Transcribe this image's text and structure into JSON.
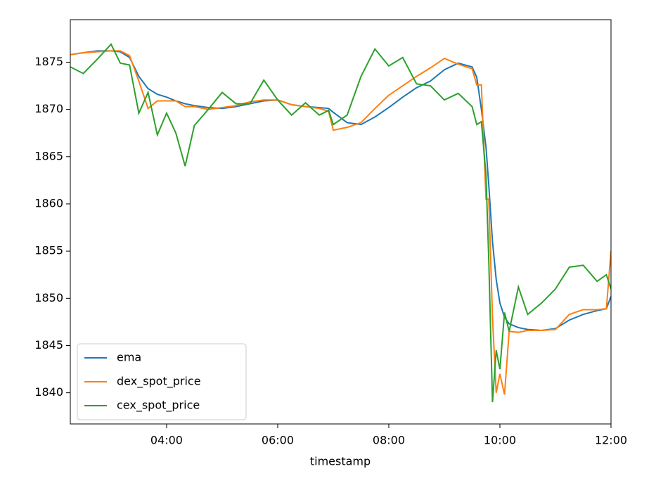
{
  "chart_data": {
    "type": "line",
    "x_label": "timestamp",
    "x": [
      "02:16",
      "02:30",
      "02:45",
      "03:00",
      "03:10",
      "03:20",
      "03:30",
      "03:40",
      "03:50",
      "04:00",
      "04:10",
      "04:20",
      "04:30",
      "04:45",
      "05:00",
      "05:15",
      "05:30",
      "05:45",
      "06:00",
      "06:15",
      "06:30",
      "06:45",
      "06:55",
      "07:00",
      "07:15",
      "07:30",
      "07:45",
      "08:00",
      "08:15",
      "08:30",
      "08:45",
      "09:00",
      "09:15",
      "09:30",
      "09:35",
      "09:40",
      "09:45",
      "09:48",
      "09:52",
      "09:56",
      "10:00",
      "10:05",
      "10:10",
      "10:20",
      "10:30",
      "10:45",
      "11:00",
      "11:15",
      "11:30",
      "11:45",
      "11:55",
      "12:00"
    ],
    "series": [
      {
        "name": "ema",
        "color": "#1f77b4",
        "values": [
          1875.8,
          1876,
          1876.2,
          1876.2,
          1876.1,
          1875.5,
          1873.5,
          1872.2,
          1871.6,
          1871.3,
          1870.9,
          1870.6,
          1870.4,
          1870.2,
          1870.1,
          1870.3,
          1870.6,
          1870.9,
          1871,
          1870.5,
          1870.3,
          1870.2,
          1870.1,
          1869.7,
          1868.6,
          1868.4,
          1869.2,
          1870.2,
          1871.3,
          1872.3,
          1873,
          1874.2,
          1874.9,
          1874.5,
          1873.4,
          1870,
          1866,
          1862,
          1856,
          1852,
          1849.5,
          1848,
          1847.3,
          1846.9,
          1846.7,
          1846.6,
          1846.8,
          1847.7,
          1848.3,
          1848.7,
          1848.9,
          1850.2
        ]
      },
      {
        "name": "dex_spot_price",
        "color": "#ff7f0e",
        "values": [
          1875.8,
          1876,
          1876.1,
          1876.2,
          1876.2,
          1875.7,
          1873,
          1870.1,
          1870.9,
          1870.9,
          1870.9,
          1870.3,
          1870.3,
          1870,
          1870.2,
          1870.4,
          1870.8,
          1871,
          1871,
          1870.5,
          1870.3,
          1870.1,
          1869.8,
          1867.8,
          1868.1,
          1868.6,
          1870.1,
          1871.5,
          1872.5,
          1873.5,
          1874.4,
          1875.4,
          1874.8,
          1874.3,
          1872.6,
          1872.6,
          1860.5,
          1860.5,
          1848,
          1840,
          1842,
          1839.8,
          1846.5,
          1846.4,
          1846.6,
          1846.6,
          1846.7,
          1848.3,
          1848.8,
          1848.8,
          1848.9,
          1855
        ]
      },
      {
        "name": "cex_spot_price",
        "color": "#2ca02c",
        "values": [
          1874.5,
          1873.8,
          1875.3,
          1876.9,
          1874.9,
          1874.7,
          1869.6,
          1871.8,
          1867.3,
          1869.6,
          1867.5,
          1864,
          1868.3,
          1870,
          1871.8,
          1870.6,
          1870.6,
          1873.1,
          1871,
          1869.4,
          1870.7,
          1869.4,
          1869.9,
          1868.4,
          1869.4,
          1873.5,
          1876.4,
          1874.6,
          1875.5,
          1872.7,
          1872.5,
          1871,
          1871.7,
          1870.3,
          1868.4,
          1868.7,
          1863,
          1854,
          1839,
          1844.5,
          1842.5,
          1848.5,
          1846.5,
          1851.2,
          1848.3,
          1849.5,
          1851,
          1853.3,
          1853.5,
          1851.8,
          1852.5,
          1851
        ]
      }
    ],
    "xlim": [
      "02:16",
      "12:00"
    ],
    "xticks": [
      "04:00",
      "06:00",
      "08:00",
      "10:00",
      "12:00"
    ],
    "ylim": [
      1836.7,
      1879.5
    ],
    "yticks": [
      1840,
      1845,
      1850,
      1855,
      1860,
      1865,
      1870,
      1875
    ],
    "legend": "lower left"
  }
}
